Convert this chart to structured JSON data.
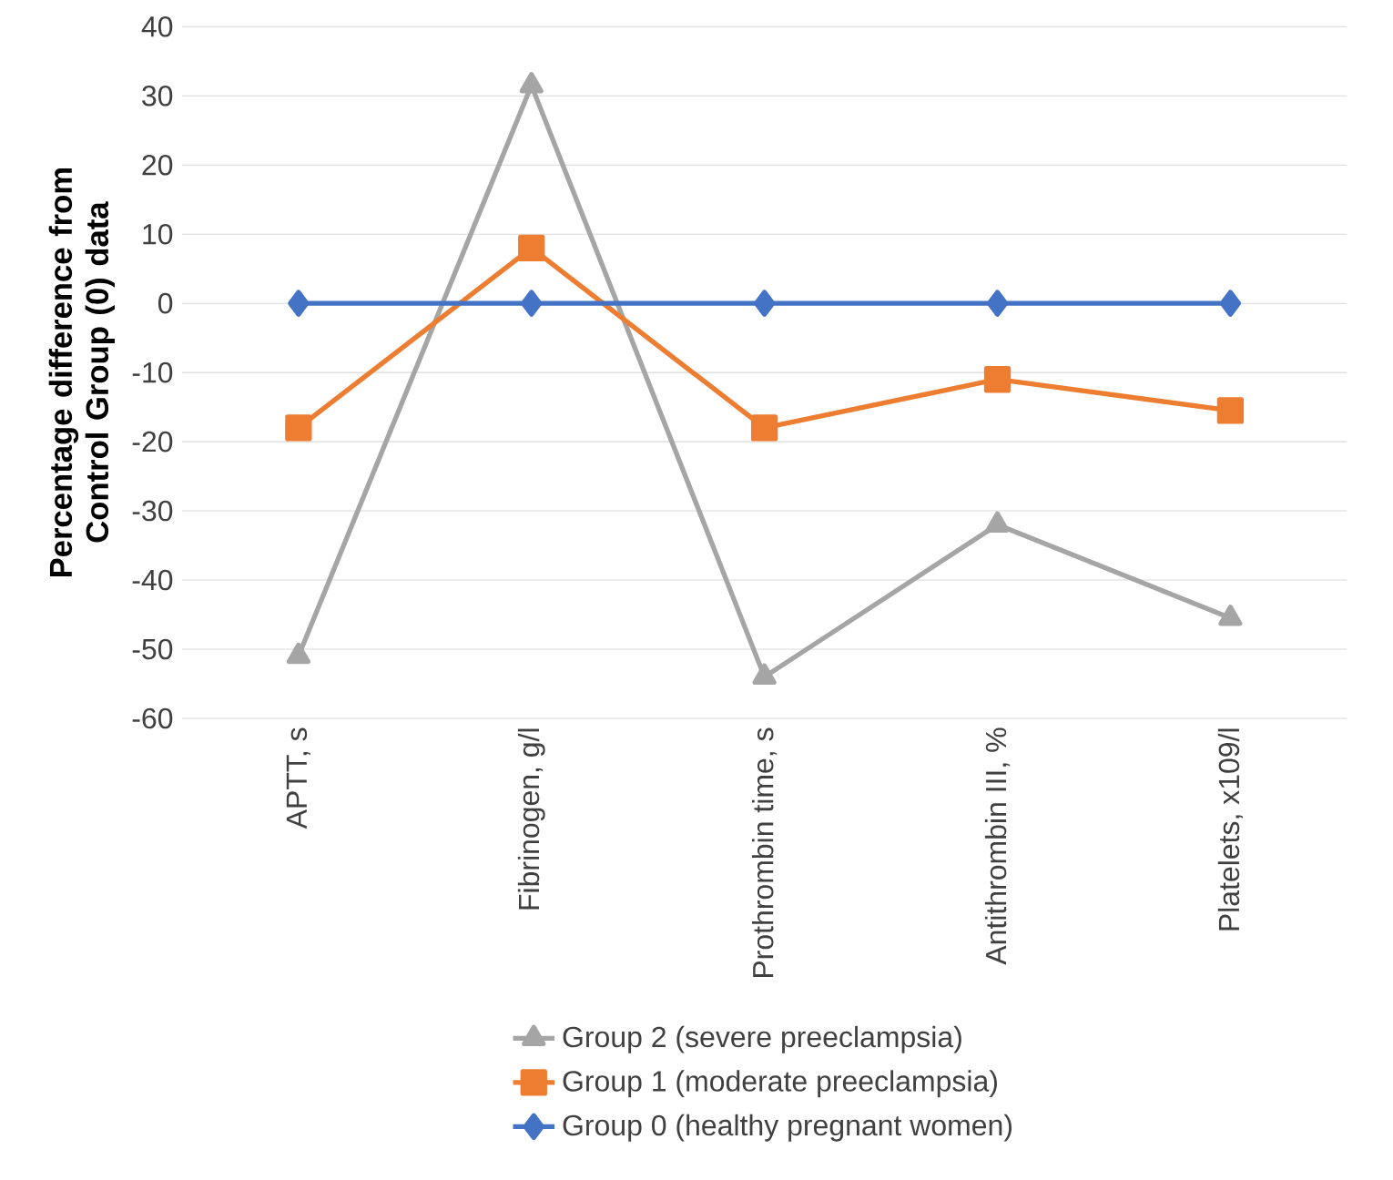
{
  "chart_data": {
    "type": "line",
    "ylabel": "Percentage difference from Control Group (0) data",
    "categories": [
      "APTT, s",
      "Fibrinogen, g/l",
      "Prothrombin time, s",
      "Antithrombin III, %",
      "Platelets, x109/l"
    ],
    "series": [
      {
        "name": "Group 2 (severe preeclampsia)",
        "color": "#a5a5a5",
        "marker": "triangle",
        "values": [
          -51,
          31.5,
          -54,
          -32,
          -45.5
        ]
      },
      {
        "name": "Group 1 (moderate preeclampsia)",
        "color": "#ed7d31",
        "marker": "square",
        "values": [
          -18,
          8,
          -18,
          -11,
          -15.5
        ]
      },
      {
        "name": "Group 0 (healthy pregnant women)",
        "color": "#4472c4",
        "marker": "diamond",
        "values": [
          0,
          0,
          0,
          0,
          0
        ]
      }
    ],
    "ylim": [
      -60,
      40
    ],
    "yticks": [
      -60,
      -50,
      -40,
      -30,
      -20,
      -10,
      0,
      10,
      20,
      30,
      40
    ],
    "grid": "y",
    "legend": "bottom",
    "line_style": "solid"
  }
}
